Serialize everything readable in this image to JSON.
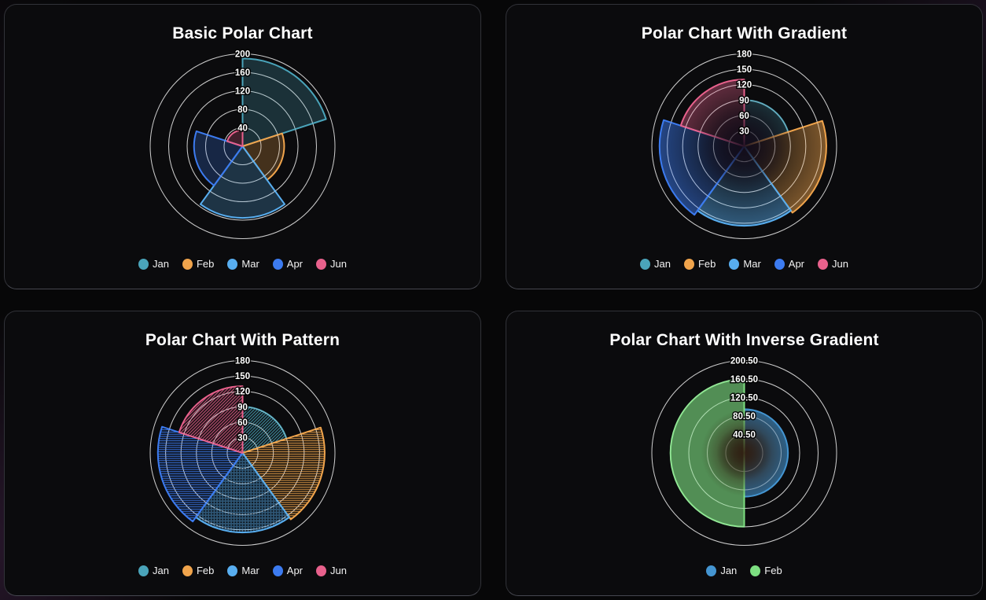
{
  "page": {
    "background_color": "#070708",
    "card_background": "#0b0b0d",
    "ring_color": "#d9d9d9"
  },
  "chart_data": [
    {
      "type": "polar",
      "variant": "basic",
      "title": "Basic Polar Chart",
      "categories": [
        "Jan",
        "Feb",
        "Mar",
        "Apr",
        "Jun"
      ],
      "values": [
        190,
        90,
        155,
        105,
        35
      ],
      "colors": [
        "#4AA4BA",
        "#F0A44C",
        "#58AEF0",
        "#3C7BF0",
        "#E8618C"
      ],
      "rmax": 200,
      "ticks": [
        40,
        80,
        120,
        160,
        200
      ],
      "tick_labels": [
        "40",
        "80",
        "120",
        "160",
        "200"
      ],
      "grid": true,
      "legend_position": "bottom",
      "start_angle_deg": 0,
      "direction": "clockwise"
    },
    {
      "type": "polar",
      "variant": "gradient",
      "title": "Polar Chart With Gradient",
      "categories": [
        "Jan",
        "Feb",
        "Mar",
        "Apr",
        "Jun"
      ],
      "values": [
        90,
        160,
        155,
        165,
        130
      ],
      "colors": [
        "#4AA4BA",
        "#F0A44C",
        "#58AEF0",
        "#3C7BF0",
        "#E8618C"
      ],
      "rmax": 180,
      "ticks": [
        30,
        60,
        90,
        120,
        150,
        180
      ],
      "tick_labels": [
        "30",
        "60",
        "90",
        "120",
        "150",
        "180"
      ],
      "grid": true,
      "legend_position": "bottom",
      "start_angle_deg": 0,
      "direction": "clockwise"
    },
    {
      "type": "polar",
      "variant": "pattern",
      "title": "Polar Chart With Pattern",
      "categories": [
        "Jan",
        "Feb",
        "Mar",
        "Apr",
        "Jun"
      ],
      "values": [
        90,
        160,
        155,
        165,
        130
      ],
      "colors": [
        "#4AA4BA",
        "#F0A44C",
        "#58AEF0",
        "#3C7BF0",
        "#E8618C"
      ],
      "patterns": [
        "diagonal",
        "hlines",
        "dots",
        "hlines",
        "diagonal"
      ],
      "rmax": 180,
      "ticks": [
        30,
        60,
        90,
        120,
        150,
        180
      ],
      "tick_labels": [
        "30",
        "60",
        "90",
        "120",
        "150",
        "180"
      ],
      "grid": true,
      "legend_position": "bottom",
      "start_angle_deg": 0,
      "direction": "clockwise"
    },
    {
      "type": "polar",
      "variant": "inverse-gradient",
      "title": "Polar Chart With Inverse Gradient",
      "categories": [
        "Jan",
        "Feb"
      ],
      "values": [
        95,
        160
      ],
      "colors": [
        "#4495D1",
        "#7DDF81"
      ],
      "rmax": 200.5,
      "ticks": [
        40.5,
        80.5,
        120.5,
        160.5,
        200.5
      ],
      "tick_labels": [
        "40.50",
        "80.50",
        "120.50",
        "160.50",
        "200.50"
      ],
      "grid": true,
      "legend_position": "bottom",
      "start_angle_deg": 0,
      "direction": "clockwise"
    }
  ]
}
